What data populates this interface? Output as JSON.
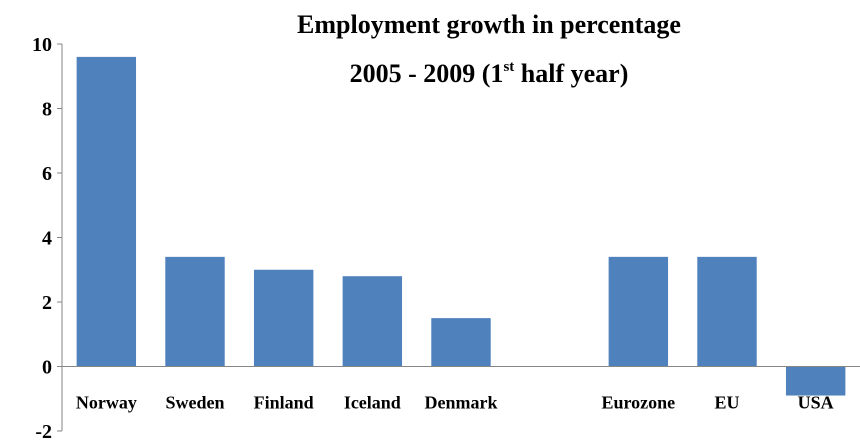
{
  "chart_data": {
    "type": "bar",
    "title_line1": "Employment growth in percentage",
    "title_line2_main": "2005 - 2009 (1",
    "title_line2_sup": "st",
    "title_line2_end": " half year)",
    "xlabel": "",
    "ylabel": "",
    "ylim": [
      -2,
      10
    ],
    "yticks": [
      "10",
      "8",
      "6",
      "4",
      "2",
      "0",
      "-2"
    ],
    "ytick_values": [
      10,
      8,
      6,
      4,
      2,
      0,
      -2
    ],
    "categories": [
      "Norway",
      "Sweden",
      "Finland",
      "Iceland",
      "Denmark",
      "",
      "Eurozone",
      "EU",
      "USA"
    ],
    "values": [
      9.6,
      3.4,
      3.0,
      2.8,
      1.5,
      null,
      3.4,
      3.4,
      -0.9
    ],
    "bar_color": "#4F81BD",
    "grid": false,
    "legend": "none"
  }
}
